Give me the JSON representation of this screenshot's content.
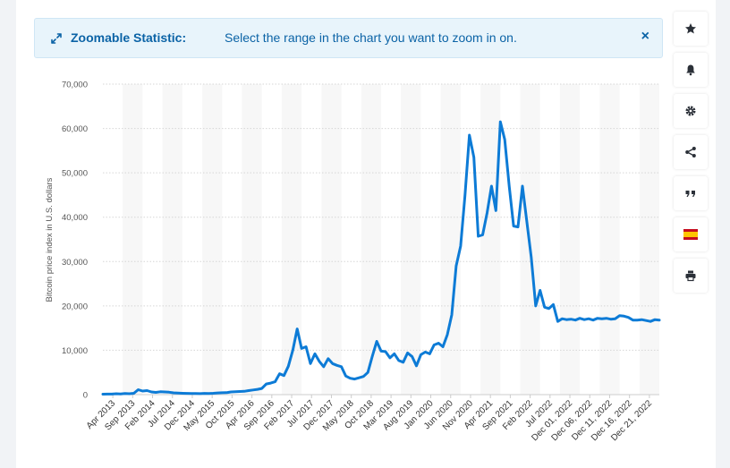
{
  "banner": {
    "title": "Zoomable Statistic:",
    "message": "Select the range in the chart you want to zoom in on.",
    "close_label": "×"
  },
  "toolbar": {
    "buttons": [
      {
        "name": "favorite-button",
        "icon": "star-icon"
      },
      {
        "name": "notification-button",
        "icon": "bell-icon"
      },
      {
        "name": "settings-button",
        "icon": "gear-icon"
      },
      {
        "name": "share-button",
        "icon": "share-icon"
      },
      {
        "name": "cite-button",
        "icon": "quote-icon"
      },
      {
        "name": "language-button",
        "icon": "spain-flag-icon"
      },
      {
        "name": "print-button",
        "icon": "print-icon"
      }
    ]
  },
  "colors": {
    "line": "#0d7bd6",
    "accent": "#0b63a6",
    "banner_bg": "#e8f4fb"
  },
  "chart_data": {
    "type": "line",
    "ylabel": "Bitcoin price index in U.S. dollars",
    "ylim": [
      0,
      70000
    ],
    "yticks": [
      0,
      10000,
      20000,
      30000,
      40000,
      50000,
      60000,
      70000
    ],
    "ytick_labels": [
      "0",
      "10,000",
      "20,000",
      "30,000",
      "40,000",
      "50,000",
      "60,000",
      "70,000"
    ],
    "grid": "horizontal dotted",
    "xtick_labels": [
      "Apr 2013",
      "Sep 2013",
      "Feb 2014",
      "Jul 2014",
      "Dec 2014",
      "May 2015",
      "Oct 2015",
      "Apr 2016",
      "Sep 2016",
      "Feb 2017",
      "Jul 2017",
      "Dec 2017",
      "May 2018",
      "Oct 2018",
      "Mar 2019",
      "Aug 2019",
      "Jan 2020",
      "Jun 2020",
      "Nov 2020",
      "Apr 2021",
      "Sep 2021",
      "Feb 2022",
      "Jul 2022",
      "Dec 01, 2022",
      "Dec 06, 2022",
      "Dec 11, 2022",
      "Dec 16, 2022",
      "Dec 21, 2022"
    ],
    "series": [
      {
        "values": [
          100,
          120,
          130,
          200,
          150,
          250,
          200,
          300,
          1100,
          800,
          900,
          600,
          500,
          650,
          600,
          550,
          400,
          350,
          300,
          280,
          250,
          240,
          230,
          280,
          260,
          300,
          380,
          420,
          450,
          600,
          650,
          700,
          750,
          900,
          1050,
          1200,
          1400,
          2400,
          2600,
          2900,
          4700,
          4300,
          6400,
          10000,
          14800,
          10400,
          10800,
          7000,
          9200,
          7500,
          6300,
          8100,
          7000,
          6600,
          6300,
          4200,
          3700,
          3500,
          3800,
          4100,
          5000,
          8600,
          12000,
          9800,
          9700,
          8300,
          9200,
          7700,
          7300,
          9400,
          8600,
          6500,
          9000,
          9600,
          9200,
          11200,
          11600,
          10800,
          13500,
          18000,
          29000,
          33500,
          45000,
          58500,
          53500,
          35700,
          36000,
          41000,
          47000,
          41500,
          61500,
          57500,
          47000,
          38000,
          37800,
          47000,
          39000,
          31000,
          20000,
          23500,
          19700,
          19400,
          20300,
          16500,
          17100,
          16900,
          17000,
          16800,
          17200,
          16900,
          17100,
          16800,
          17200,
          17100,
          17200,
          17000,
          17100,
          17800,
          17700,
          17400,
          16800,
          16800,
          16900,
          16700,
          16500,
          16900,
          16800
        ]
      }
    ]
  }
}
